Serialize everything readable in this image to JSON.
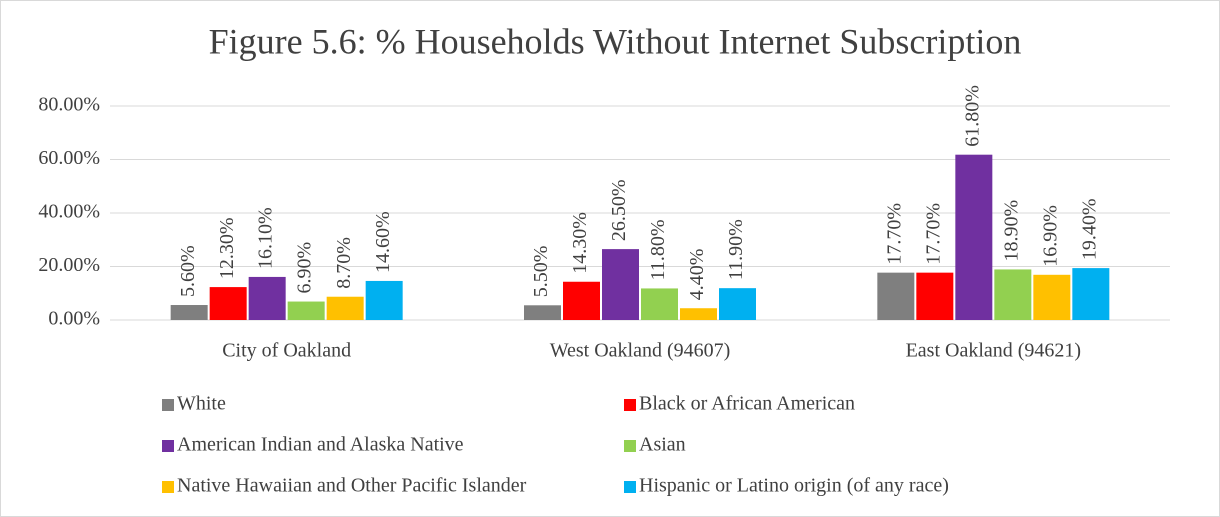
{
  "chart_data": {
    "type": "bar",
    "title": "Figure 5.6: % Households Without Internet Subscription",
    "categories": [
      "City of Oakland",
      "West Oakland (94607)",
      "East Oakland (94621)"
    ],
    "series": [
      {
        "name": "White",
        "color": "#7f7f7f",
        "values": [
          5.6,
          5.5,
          17.7
        ],
        "value_labels": [
          "5.60%",
          "5.50%",
          "17.70%"
        ]
      },
      {
        "name": "Black or African American",
        "color": "#ff0000",
        "values": [
          12.3,
          14.3,
          17.7
        ],
        "value_labels": [
          "12.30%",
          "14.30%",
          "17.70%"
        ]
      },
      {
        "name": "American Indian and Alaska Native",
        "color": "#7030a0",
        "values": [
          16.1,
          26.5,
          61.8
        ],
        "value_labels": [
          "16.10%",
          "26.50%",
          "61.80%"
        ]
      },
      {
        "name": "Asian",
        "color": "#92d050",
        "values": [
          6.9,
          11.8,
          18.9
        ],
        "value_labels": [
          "6.90%",
          "11.80%",
          "18.90%"
        ]
      },
      {
        "name": "Native Hawaiian and Other Pacific Islander",
        "color": "#ffc000",
        "values": [
          8.7,
          4.4,
          16.9
        ],
        "value_labels": [
          "8.70%",
          "4.40%",
          "16.90%"
        ]
      },
      {
        "name": "Hispanic or Latino origin (of any race)",
        "color": "#00b0f0",
        "values": [
          14.6,
          11.9,
          19.4
        ],
        "value_labels": [
          "14.60%",
          "11.90%",
          "19.40%"
        ]
      }
    ],
    "ylim": [
      0,
      80
    ],
    "yticks": [
      {
        "value": 0,
        "label": "0.00%"
      },
      {
        "value": 20,
        "label": "20.00%"
      },
      {
        "value": 40,
        "label": "40.00%"
      },
      {
        "value": 60,
        "label": "60.00%"
      },
      {
        "value": 80,
        "label": "80.00%"
      }
    ],
    "grid": true,
    "legend": "bottom"
  }
}
